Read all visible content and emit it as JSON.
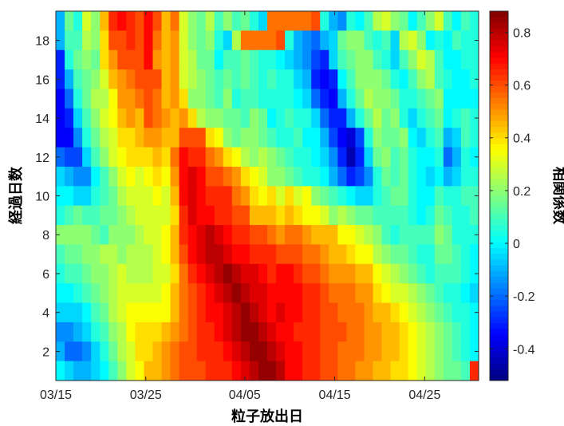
{
  "chart_data": {
    "type": "heatmap",
    "title": "",
    "xlabel": "粒子放出日",
    "ylabel": "経過日数",
    "colorbar_label": "相関係数",
    "x_tick_labels": [
      "03/15",
      "03/25",
      "04/05",
      "04/15",
      "04/25"
    ],
    "x_tick_days": [
      0,
      10,
      21,
      31,
      41
    ],
    "y_tick_labels": [
      "2",
      "4",
      "6",
      "8",
      "10",
      "12",
      "14",
      "16",
      "18"
    ],
    "y_tick_values": [
      2,
      4,
      6,
      8,
      10,
      12,
      14,
      16,
      18
    ],
    "colorbar_tick_labels": [
      "-0.4",
      "-0.2",
      "0",
      "0.2",
      "0.4",
      "0.6",
      "0.8"
    ],
    "colorbar_tick_values": [
      -0.4,
      -0.2,
      0,
      0.2,
      0.4,
      0.6,
      0.8
    ],
    "x_days_range": [
      0,
      47
    ],
    "y_range": [
      0.5,
      19.5
    ],
    "color_range": [
      -0.52,
      0.88
    ],
    "colormap": "jet",
    "grid": false,
    "cells_per_row": 48,
    "row_order": "top row is elapsed day 19, bottom row is elapsed day 1",
    "correlation_rows": [
      [
        -0.1,
        0.15,
        0.05,
        0.3,
        0.2,
        0.45,
        0.65,
        0.7,
        0.65,
        0.6,
        0.7,
        0.6,
        0.45,
        0.55,
        0.3,
        0.2,
        0.15,
        0.25,
        0.1,
        0.2,
        0.1,
        0.15,
        0.05,
        -0.05,
        0.55,
        0.55,
        0.55,
        0.55,
        0.55,
        0.6,
        0.05,
        -0.1,
        -0.15,
        0.05,
        0.0,
        0.1,
        0.25,
        0.3,
        0.2,
        0.15,
        0.0,
        0.1,
        0.2,
        0.3,
        0.1,
        0.0,
        0.1,
        0.05
      ],
      [
        -0.1,
        0.1,
        0.1,
        0.25,
        0.2,
        0.4,
        0.6,
        0.6,
        0.65,
        0.6,
        0.7,
        0.55,
        0.45,
        0.5,
        0.3,
        0.2,
        0.15,
        0.2,
        0.05,
        -0.05,
        0.25,
        0.55,
        0.55,
        0.55,
        0.55,
        0.6,
        0.05,
        -0.1,
        -0.15,
        -0.2,
        -0.1,
        -0.05,
        0.15,
        0.2,
        0.2,
        0.1,
        0.05,
        0.1,
        -0.05,
        0.25,
        0.3,
        0.2,
        0.0,
        0.05,
        0.0,
        0.1,
        0.05,
        0.05
      ],
      [
        -0.3,
        0.05,
        0.15,
        0.2,
        0.15,
        0.4,
        0.5,
        0.6,
        0.6,
        0.6,
        0.7,
        0.5,
        0.45,
        0.5,
        0.3,
        0.25,
        0.15,
        0.15,
        0.0,
        0.1,
        0.1,
        0.15,
        0.1,
        0.05,
        0.05,
        0.0,
        -0.05,
        -0.1,
        -0.15,
        -0.25,
        -0.3,
        -0.05,
        0.1,
        0.15,
        0.2,
        0.2,
        0.1,
        0.05,
        -0.05,
        0.1,
        0.2,
        0.3,
        0.25,
        0.1,
        0.0,
        0.0,
        0.05,
        0.05
      ],
      [
        -0.3,
        -0.1,
        0.1,
        0.15,
        0.2,
        0.3,
        0.45,
        0.5,
        0.55,
        0.6,
        0.6,
        0.6,
        0.45,
        0.5,
        0.3,
        0.25,
        0.2,
        0.15,
        0.1,
        0.15,
        0.1,
        0.15,
        0.1,
        0.05,
        0.1,
        0.05,
        0.05,
        -0.05,
        -0.1,
        -0.3,
        -0.35,
        -0.3,
        0.0,
        0.1,
        0.2,
        0.2,
        0.2,
        0.15,
        0.05,
        0.0,
        0.1,
        0.2,
        0.25,
        0.1,
        0.05,
        0.0,
        0.0,
        0.05
      ],
      [
        -0.35,
        -0.2,
        0.05,
        0.15,
        0.25,
        0.25,
        0.35,
        0.5,
        0.5,
        0.55,
        0.6,
        0.55,
        0.45,
        0.5,
        0.4,
        0.2,
        0.2,
        0.15,
        0.1,
        0.2,
        0.05,
        0.1,
        0.1,
        0.05,
        0.05,
        0.05,
        0.05,
        0.0,
        -0.05,
        -0.2,
        -0.3,
        -0.35,
        -0.1,
        0.05,
        0.15,
        0.25,
        0.2,
        0.2,
        0.15,
        0.05,
        0.05,
        0.1,
        0.15,
        0.2,
        0.0,
        0.0,
        0.0,
        0.0
      ],
      [
        -0.35,
        -0.3,
        -0.05,
        0.1,
        0.2,
        0.3,
        0.35,
        0.45,
        0.5,
        0.45,
        0.6,
        0.55,
        0.5,
        0.45,
        0.5,
        0.4,
        0.25,
        0.2,
        0.2,
        0.15,
        0.15,
        0.1,
        0.2,
        0.15,
        0.0,
        0.05,
        0.1,
        0.05,
        0.05,
        -0.05,
        -0.2,
        -0.3,
        -0.3,
        -0.1,
        0.05,
        0.15,
        0.25,
        0.15,
        0.2,
        0.05,
        -0.05,
        0.05,
        0.1,
        0.15,
        0.0,
        0.05,
        0.1,
        0.05
      ],
      [
        -0.35,
        -0.35,
        -0.15,
        0.05,
        0.15,
        0.25,
        0.3,
        0.4,
        0.4,
        0.45,
        0.5,
        0.5,
        0.45,
        0.45,
        0.6,
        0.6,
        0.6,
        0.4,
        0.35,
        0.2,
        0.15,
        0.2,
        0.2,
        0.15,
        0.1,
        0.05,
        0.05,
        0.1,
        0.0,
        0.0,
        -0.1,
        -0.25,
        -0.35,
        -0.4,
        -0.25,
        0.05,
        0.2,
        0.15,
        0.15,
        0.2,
        0.0,
        -0.05,
        0.05,
        0.1,
        -0.1,
        -0.05,
        0.1,
        0.05
      ],
      [
        -0.2,
        -0.25,
        -0.25,
        -0.05,
        0.1,
        0.2,
        0.3,
        0.35,
        0.4,
        0.4,
        0.4,
        0.45,
        0.4,
        0.55,
        0.7,
        0.65,
        0.65,
        0.55,
        0.5,
        0.4,
        0.35,
        0.25,
        0.2,
        0.25,
        0.2,
        0.15,
        0.1,
        0.05,
        0.05,
        0.0,
        -0.05,
        -0.15,
        -0.3,
        -0.45,
        -0.3,
        -0.05,
        0.15,
        0.2,
        0.1,
        0.15,
        0.05,
        0.0,
        0.0,
        0.05,
        -0.2,
        -0.1,
        0.05,
        0.0
      ],
      [
        -0.05,
        -0.1,
        -0.15,
        -0.15,
        0.0,
        0.1,
        0.2,
        0.3,
        0.35,
        0.3,
        0.35,
        0.4,
        0.35,
        0.5,
        0.7,
        0.75,
        0.7,
        0.6,
        0.6,
        0.55,
        0.5,
        0.4,
        0.35,
        0.3,
        0.2,
        0.2,
        0.15,
        0.1,
        0.05,
        0.05,
        0.0,
        -0.1,
        -0.2,
        -0.3,
        -0.25,
        -0.15,
        0.05,
        0.15,
        0.1,
        0.15,
        0.05,
        0.0,
        -0.05,
        0.0,
        -0.1,
        -0.05,
        0.05,
        0.05
      ],
      [
        0.0,
        0.0,
        -0.05,
        -0.05,
        0.05,
        0.1,
        0.15,
        0.25,
        0.3,
        0.3,
        0.3,
        0.35,
        0.3,
        0.45,
        0.7,
        0.75,
        0.7,
        0.65,
        0.65,
        0.65,
        0.55,
        0.5,
        0.4,
        0.35,
        0.4,
        0.3,
        0.4,
        0.3,
        0.35,
        0.2,
        0.15,
        0.1,
        0.05,
        0.0,
        -0.05,
        -0.05,
        0.05,
        0.1,
        0.15,
        0.15,
        0.05,
        0.0,
        0.0,
        0.1,
        0.05,
        0.05,
        0.1,
        0.1
      ],
      [
        0.05,
        0.1,
        0.15,
        0.1,
        0.1,
        0.15,
        0.15,
        0.2,
        0.25,
        0.3,
        0.3,
        0.3,
        0.3,
        0.4,
        0.65,
        0.75,
        0.7,
        0.7,
        0.65,
        0.65,
        0.6,
        0.6,
        0.45,
        0.45,
        0.45,
        0.4,
        0.45,
        0.4,
        0.35,
        0.35,
        0.3,
        0.2,
        0.25,
        0.2,
        0.15,
        0.15,
        0.1,
        0.1,
        0.1,
        0.1,
        0.05,
        0.0,
        0.05,
        0.15,
        0.1,
        0.05,
        0.05,
        0.1
      ],
      [
        0.2,
        0.2,
        0.2,
        0.2,
        0.15,
        0.1,
        0.2,
        0.2,
        0.2,
        0.25,
        0.3,
        0.3,
        0.35,
        0.45,
        0.65,
        0.7,
        0.75,
        0.8,
        0.75,
        0.7,
        0.65,
        0.65,
        0.6,
        0.6,
        0.55,
        0.5,
        0.55,
        0.55,
        0.5,
        0.45,
        0.45,
        0.45,
        0.35,
        0.35,
        0.3,
        0.25,
        0.2,
        0.1,
        0.05,
        0.1,
        0.1,
        0.1,
        0.1,
        0.2,
        0.15,
        0.05,
        0.05,
        0.05
      ],
      [
        0.1,
        0.15,
        0.15,
        0.2,
        0.2,
        0.25,
        0.25,
        0.2,
        0.25,
        0.25,
        0.25,
        0.3,
        0.35,
        0.45,
        0.6,
        0.7,
        0.75,
        0.8,
        0.8,
        0.75,
        0.7,
        0.7,
        0.65,
        0.65,
        0.65,
        0.6,
        0.6,
        0.6,
        0.55,
        0.55,
        0.5,
        0.45,
        0.45,
        0.4,
        0.35,
        0.35,
        0.25,
        0.2,
        0.15,
        0.15,
        0.1,
        0.05,
        0.05,
        0.15,
        0.15,
        0.1,
        0.05,
        0.0
      ],
      [
        0.05,
        0.1,
        0.1,
        0.15,
        0.2,
        0.2,
        0.25,
        0.3,
        0.25,
        0.25,
        0.25,
        0.3,
        0.3,
        0.4,
        0.55,
        0.65,
        0.7,
        0.75,
        0.8,
        0.85,
        0.8,
        0.75,
        0.75,
        0.7,
        0.65,
        0.7,
        0.7,
        0.65,
        0.6,
        0.6,
        0.55,
        0.5,
        0.5,
        0.5,
        0.45,
        0.45,
        0.35,
        0.3,
        0.25,
        0.2,
        0.15,
        0.1,
        0.05,
        0.1,
        0.1,
        0.1,
        0.05,
        0.0
      ],
      [
        0.0,
        0.0,
        0.05,
        0.1,
        0.15,
        0.2,
        0.25,
        0.3,
        0.3,
        0.3,
        0.3,
        0.3,
        0.35,
        0.45,
        0.55,
        0.6,
        0.65,
        0.7,
        0.75,
        0.8,
        0.85,
        0.8,
        0.75,
        0.75,
        0.7,
        0.7,
        0.7,
        0.7,
        0.65,
        0.65,
        0.6,
        0.55,
        0.55,
        0.55,
        0.5,
        0.5,
        0.4,
        0.35,
        0.3,
        0.3,
        0.25,
        0.2,
        0.15,
        0.1,
        0.05,
        0.05,
        0.0,
        -0.05
      ],
      [
        -0.05,
        -0.05,
        -0.05,
        0.0,
        0.1,
        0.15,
        0.25,
        0.3,
        0.35,
        0.35,
        0.35,
        0.35,
        0.35,
        0.45,
        0.55,
        0.6,
        0.65,
        0.7,
        0.7,
        0.75,
        0.8,
        0.85,
        0.8,
        0.75,
        0.7,
        0.75,
        0.7,
        0.7,
        0.65,
        0.65,
        0.6,
        0.6,
        0.55,
        0.55,
        0.55,
        0.5,
        0.45,
        0.45,
        0.4,
        0.35,
        0.3,
        0.25,
        0.2,
        0.15,
        0.1,
        0.05,
        0.05,
        0.0
      ],
      [
        -0.15,
        -0.15,
        -0.1,
        -0.05,
        0.05,
        0.1,
        0.2,
        0.25,
        0.35,
        0.4,
        0.4,
        0.4,
        0.45,
        0.5,
        0.55,
        0.6,
        0.65,
        0.65,
        0.7,
        0.75,
        0.8,
        0.85,
        0.85,
        0.8,
        0.75,
        0.7,
        0.7,
        0.65,
        0.65,
        0.65,
        0.6,
        0.6,
        0.6,
        0.55,
        0.55,
        0.5,
        0.5,
        0.45,
        0.45,
        0.4,
        0.35,
        0.3,
        0.25,
        0.2,
        0.15,
        0.1,
        0.05,
        0.0
      ],
      [
        -0.1,
        -0.2,
        -0.2,
        -0.15,
        -0.05,
        0.05,
        0.15,
        0.25,
        0.3,
        0.4,
        0.4,
        0.45,
        0.5,
        0.55,
        0.6,
        0.6,
        0.65,
        0.65,
        0.65,
        0.7,
        0.75,
        0.8,
        0.85,
        0.85,
        0.8,
        0.75,
        0.7,
        0.7,
        0.65,
        0.65,
        0.6,
        0.6,
        0.55,
        0.55,
        0.55,
        0.5,
        0.5,
        0.45,
        0.45,
        0.4,
        0.35,
        0.3,
        0.25,
        0.2,
        0.15,
        0.1,
        0.05,
        0.0
      ],
      [
        0.0,
        -0.05,
        -0.1,
        -0.1,
        -0.05,
        0.0,
        0.1,
        0.2,
        0.3,
        0.35,
        0.45,
        0.45,
        0.5,
        0.55,
        0.6,
        0.6,
        0.6,
        0.65,
        0.65,
        0.65,
        0.7,
        0.75,
        0.8,
        0.85,
        0.85,
        0.8,
        0.7,
        0.7,
        0.65,
        0.65,
        0.6,
        0.6,
        0.55,
        0.55,
        0.5,
        0.5,
        0.45,
        0.45,
        0.4,
        0.4,
        0.35,
        0.3,
        0.25,
        0.2,
        0.15,
        0.15,
        0.1,
        0.65
      ]
    ]
  }
}
